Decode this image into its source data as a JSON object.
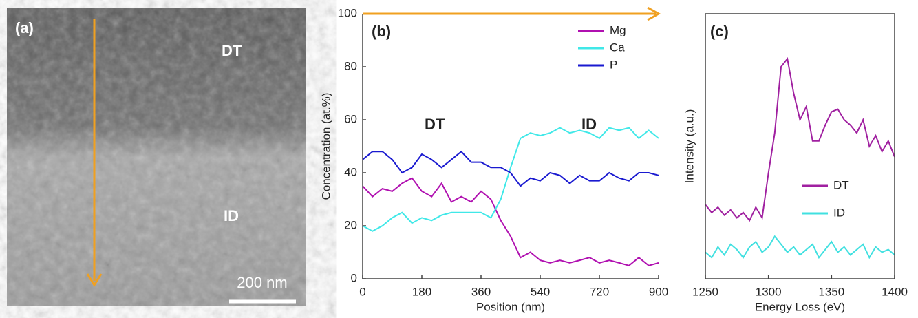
{
  "image_panel": {
    "label": "(a)",
    "annotations": [
      "DT",
      "ID"
    ],
    "scale_bar": "200 nm"
  },
  "chart_data": [
    {
      "type": "line",
      "panel_label": "(b)",
      "xlabel": "Position (nm)",
      "ylabel": "Concentration (at.%)",
      "annotations": [
        "DT",
        "ID"
      ],
      "x": [
        0,
        30,
        60,
        90,
        120,
        150,
        180,
        210,
        240,
        270,
        300,
        330,
        360,
        390,
        420,
        450,
        480,
        510,
        540,
        570,
        600,
        630,
        660,
        690,
        720,
        750,
        780,
        810,
        840,
        870,
        900
      ],
      "xlim": [
        0,
        900
      ],
      "xticks": [
        0,
        180,
        360,
        540,
        720,
        900
      ],
      "ylim": [
        0,
        100
      ],
      "yticks": [
        0,
        20,
        40,
        60,
        80,
        100
      ],
      "series": [
        {
          "name": "Mg",
          "color": "#b010b0",
          "values": [
            35,
            31,
            34,
            33,
            36,
            38,
            33,
            31,
            36,
            29,
            31,
            29,
            33,
            30,
            22,
            16,
            8,
            10,
            7,
            6,
            7,
            6,
            7,
            8,
            6,
            7,
            6,
            5,
            8,
            5,
            6
          ]
        },
        {
          "name": "Ca",
          "color": "#40e8e8",
          "values": [
            20,
            18,
            20,
            23,
            25,
            21,
            23,
            22,
            24,
            25,
            25,
            25,
            25,
            23,
            30,
            42,
            53,
            55,
            54,
            55,
            57,
            55,
            56,
            55,
            53,
            57,
            56,
            57,
            53,
            56,
            53
          ]
        },
        {
          "name": "P",
          "color": "#1a1ad0",
          "values": [
            45,
            48,
            48,
            45,
            40,
            42,
            47,
            45,
            42,
            45,
            48,
            44,
            44,
            42,
            42,
            40,
            35,
            38,
            37,
            40,
            39,
            36,
            39,
            37,
            37,
            40,
            38,
            37,
            40,
            40,
            39
          ]
        }
      ]
    },
    {
      "type": "line",
      "panel_label": "(c)",
      "xlabel": "Energy Loss (eV)",
      "ylabel": "Intensity (a.u.)",
      "x": [
        1250,
        1255,
        1260,
        1265,
        1270,
        1275,
        1280,
        1285,
        1290,
        1295,
        1300,
        1305,
        1310,
        1315,
        1320,
        1325,
        1330,
        1335,
        1340,
        1345,
        1350,
        1355,
        1360,
        1365,
        1370,
        1375,
        1380,
        1385,
        1390,
        1395,
        1400
      ],
      "xlim": [
        1250,
        1400
      ],
      "xticks": [
        1250,
        1300,
        1350,
        1400
      ],
      "ylim": [
        0,
        100
      ],
      "series": [
        {
          "name": "DT",
          "color": "#a020a0",
          "values": [
            28,
            25,
            27,
            24,
            26,
            23,
            25,
            22,
            27,
            23,
            40,
            55,
            80,
            83,
            70,
            60,
            65,
            52,
            52,
            58,
            63,
            64,
            60,
            58,
            55,
            60,
            50,
            54,
            48,
            52,
            46
          ]
        },
        {
          "name": "ID",
          "color": "#40e0e0",
          "values": [
            10,
            8,
            12,
            9,
            13,
            11,
            8,
            12,
            14,
            10,
            12,
            16,
            13,
            10,
            12,
            9,
            11,
            13,
            8,
            11,
            14,
            10,
            12,
            9,
            11,
            13,
            8,
            12,
            10,
            11,
            9
          ]
        }
      ]
    }
  ]
}
